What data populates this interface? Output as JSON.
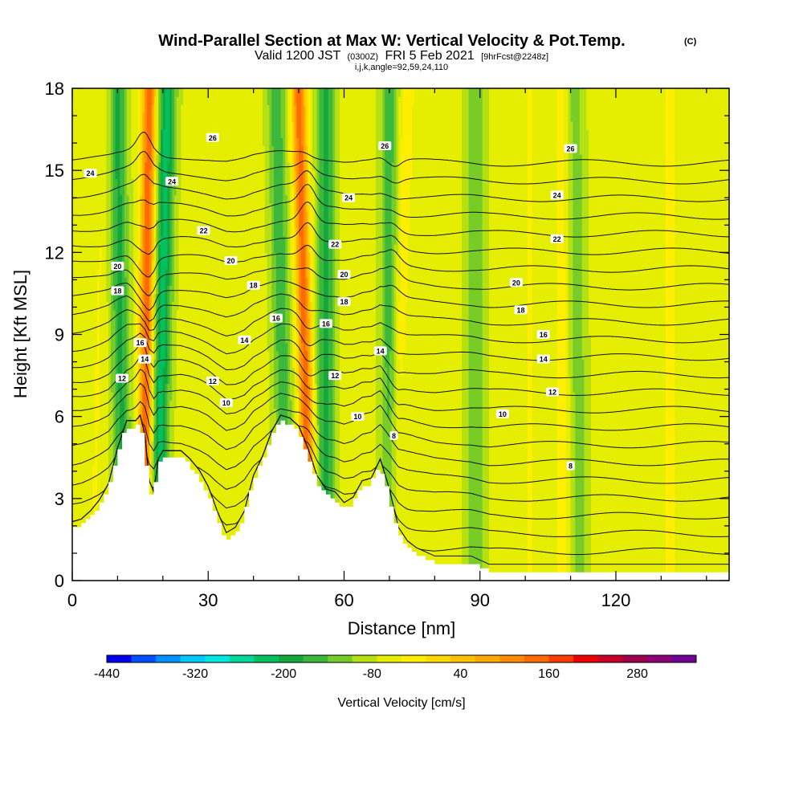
{
  "chart_data": {
    "type": "heatmap",
    "title": "Wind-Parallel Section at Max W: Vertical Velocity & Pot.Temp.",
    "title_mark": "(C)",
    "subtitle": {
      "prefix": "Valid 1200 JST",
      "zulu": "(0300Z)",
      "date": "FRI 5 Feb 2021",
      "forecast": "[9hrFcst@2248z]"
    },
    "indices": "i,j,k,angle=92,59,24,110",
    "xlabel": "Distance [nm]",
    "ylabel": "Height [Kft MSL]",
    "xlim": [
      0,
      145
    ],
    "ylim": [
      0,
      18
    ],
    "x_ticks": [
      "0",
      "30",
      "60",
      "90",
      "120"
    ],
    "x_tick_values": [
      0,
      30,
      60,
      90,
      120
    ],
    "y_ticks": [
      "0",
      "3",
      "6",
      "9",
      "12",
      "15",
      "18"
    ],
    "y_tick_values": [
      0,
      3,
      6,
      9,
      12,
      15,
      18
    ],
    "terrain": {
      "x": [
        0,
        2,
        4,
        6,
        8,
        10,
        12,
        14,
        15,
        16,
        17,
        18,
        19,
        20,
        22,
        24,
        26,
        28,
        30,
        32,
        34,
        36,
        38,
        40,
        42,
        44,
        46,
        48,
        50,
        52,
        54,
        56,
        58,
        60,
        62,
        64,
        66,
        68,
        70,
        72,
        74,
        76,
        78,
        80,
        84,
        88,
        92,
        96,
        100,
        110,
        120,
        130,
        140,
        145
      ],
      "y": [
        1.9,
        2.0,
        2.3,
        2.7,
        3.3,
        4.6,
        5.6,
        5.6,
        5.8,
        5.1,
        3.4,
        3.0,
        4.2,
        4.5,
        4.5,
        4.5,
        4.2,
        3.8,
        3.2,
        2.3,
        1.5,
        1.7,
        2.3,
        3.6,
        4.3,
        5.2,
        5.8,
        5.7,
        5.4,
        4.6,
        3.6,
        3.1,
        3.0,
        2.6,
        2.8,
        3.4,
        3.5,
        4.2,
        3.1,
        1.7,
        1.2,
        0.95,
        0.8,
        0.65,
        0.65,
        0.65,
        0.35,
        0.35,
        0.35,
        0.35,
        0.35,
        0.35,
        0.35,
        0.35
      ]
    },
    "updrafts": [
      {
        "x_base": 16,
        "x_top": 17,
        "strength": 260
      },
      {
        "x_base": 52,
        "x_top": 50,
        "strength": 250
      },
      {
        "x_base": 71,
        "x_top": 74,
        "strength": 60
      },
      {
        "x_base": 5,
        "x_top": 7,
        "strength": 30
      },
      {
        "x_base": 101,
        "x_top": 101,
        "strength": 30
      },
      {
        "x_base": 108,
        "x_top": 108,
        "strength": 50
      },
      {
        "x_base": 132,
        "x_top": 132,
        "strength": 40
      }
    ],
    "downdrafts": [
      {
        "x_base": 11,
        "x_top": 10,
        "strength": -140
      },
      {
        "x_base": 19,
        "x_top": 21,
        "strength": -190
      },
      {
        "x_base": 47,
        "x_top": 45,
        "strength": -120
      },
      {
        "x_base": 56,
        "x_top": 56,
        "strength": -150
      },
      {
        "x_base": 70,
        "x_top": 70,
        "strength": -110
      },
      {
        "x_base": 89,
        "x_top": 89,
        "strength": -90
      },
      {
        "x_base": 112,
        "x_top": 111,
        "strength": -70
      }
    ],
    "isentropes": [
      4,
      5,
      6,
      7,
      8,
      9,
      10,
      11,
      12,
      13,
      14,
      15,
      16,
      17,
      18,
      19,
      20,
      21,
      22,
      23,
      24,
      25,
      26,
      27
    ],
    "contour_labels": [
      {
        "text": "26",
        "x": 31,
        "y": 16.2
      },
      {
        "text": "26",
        "x": 69,
        "y": 15.9
      },
      {
        "text": "26",
        "x": 110,
        "y": 15.8
      },
      {
        "text": "24",
        "x": 4,
        "y": 14.9
      },
      {
        "text": "24",
        "x": 22,
        "y": 14.6
      },
      {
        "text": "24",
        "x": 61,
        "y": 14.0
      },
      {
        "text": "24",
        "x": 107,
        "y": 14.1
      },
      {
        "text": "22",
        "x": 29,
        "y": 12.8
      },
      {
        "text": "22",
        "x": 58,
        "y": 12.3
      },
      {
        "text": "22",
        "x": 107,
        "y": 12.5
      },
      {
        "text": "20",
        "x": 10,
        "y": 11.5
      },
      {
        "text": "20",
        "x": 35,
        "y": 11.7
      },
      {
        "text": "20",
        "x": 60,
        "y": 11.2
      },
      {
        "text": "20",
        "x": 98,
        "y": 10.9
      },
      {
        "text": "18",
        "x": 10,
        "y": 10.6
      },
      {
        "text": "18",
        "x": 40,
        "y": 10.8
      },
      {
        "text": "18",
        "x": 60,
        "y": 10.2
      },
      {
        "text": "18",
        "x": 99,
        "y": 9.9
      },
      {
        "text": "16",
        "x": 15,
        "y": 8.7
      },
      {
        "text": "16",
        "x": 45,
        "y": 9.6
      },
      {
        "text": "16",
        "x": 56,
        "y": 9.4
      },
      {
        "text": "16",
        "x": 104,
        "y": 9.0
      },
      {
        "text": "14",
        "x": 16,
        "y": 8.1
      },
      {
        "text": "14",
        "x": 38,
        "y": 8.8
      },
      {
        "text": "14",
        "x": 68,
        "y": 8.4
      },
      {
        "text": "14",
        "x": 104,
        "y": 8.1
      },
      {
        "text": "12",
        "x": 11,
        "y": 7.4
      },
      {
        "text": "12",
        "x": 31,
        "y": 7.3
      },
      {
        "text": "12",
        "x": 58,
        "y": 7.5
      },
      {
        "text": "12",
        "x": 106,
        "y": 6.9
      },
      {
        "text": "10",
        "x": 34,
        "y": 6.5
      },
      {
        "text": "10",
        "x": 63,
        "y": 6.0
      },
      {
        "text": "10",
        "x": 95,
        "y": 6.1
      },
      {
        "text": "8",
        "x": 71,
        "y": 5.3
      },
      {
        "text": "8",
        "x": 110,
        "y": 4.2
      }
    ],
    "colorbar": {
      "label": "Vertical Velocity [cm/s]",
      "tick_labels": [
        "-440",
        "-320",
        "-200",
        "-80",
        "40",
        "160",
        "280"
      ],
      "tick_values": [
        -440,
        -320,
        -200,
        -80,
        40,
        160,
        280
      ],
      "min": -440,
      "max": 360,
      "step": 40,
      "colors": [
        "#0000ee",
        "#0050ff",
        "#0090ff",
        "#00c8ff",
        "#00e6e0",
        "#00d89a",
        "#00c060",
        "#14a83c",
        "#3cb83c",
        "#78cc28",
        "#b4e014",
        "#e6ee00",
        "#ffee00",
        "#ffd800",
        "#ffc000",
        "#ffa800",
        "#ff8c00",
        "#ff6a00",
        "#ff3c00",
        "#ee0000",
        "#c80028",
        "#a0004e",
        "#8c0078",
        "#6e0096"
      ]
    }
  }
}
